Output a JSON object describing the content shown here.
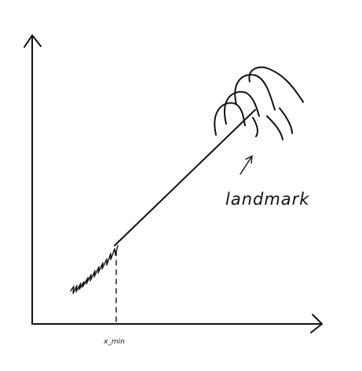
{
  "diagram": {
    "labels": {
      "landmark": "landmark",
      "x_min": "x_min"
    },
    "ink_color": "#111111",
    "background": "#ffffff"
  }
}
